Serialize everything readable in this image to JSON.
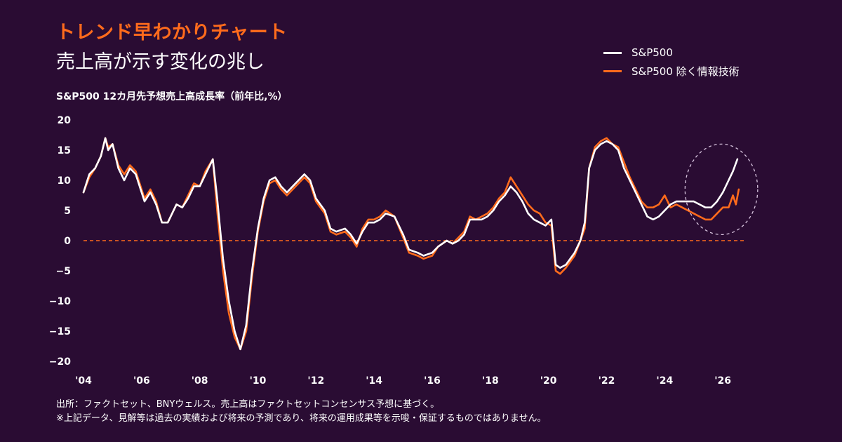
{
  "header": {
    "kicker": "トレンド早わかりチャート",
    "headline": "売上高が示す変化の兆し",
    "axis_caption": "S&P500 12カ月先予想売上高成長率（前年比,%）"
  },
  "legend": [
    {
      "label": "S&P500",
      "color": "#ffffff"
    },
    {
      "label": "S&P500 除く情報技術",
      "color": "#ff6b1c"
    }
  ],
  "footnote": {
    "line1": "出所：ファクトセット、BNYウェルス。売上高はファクトセットコンセンサス予想に基づく。",
    "line2": "※上記データ、見解等は過去の実績および将来の予測であり、将来の運用成果等を示唆・保証するものではありません。"
  },
  "chart_data": {
    "type": "line",
    "x_tick_labels": [
      "'04",
      "'06",
      "'08",
      "'10",
      "'12",
      "'14",
      "'16",
      "'18",
      "'20",
      "'22",
      "'24",
      "'26"
    ],
    "x_tick_years": [
      2004,
      2006,
      2008,
      2010,
      2012,
      2014,
      2016,
      2018,
      2020,
      2022,
      2024,
      2026
    ],
    "y_ticks": [
      20,
      15,
      10,
      5,
      0,
      -5,
      -10,
      -15,
      -20
    ],
    "xlim": [
      2004,
      2026.6
    ],
    "ylim": [
      -20,
      20
    ],
    "zero_line": {
      "value": 0,
      "style": "dashed",
      "color": "#ff6b1c"
    },
    "highlight": {
      "shape": "dashed-ellipse",
      "x_range": [
        2024.7,
        2027.2
      ],
      "y_range": [
        1,
        16
      ]
    },
    "series": [
      {
        "name": "S&P500",
        "color": "#ffffff",
        "points": [
          [
            2004.0,
            8
          ],
          [
            2004.2,
            11
          ],
          [
            2004.4,
            12
          ],
          [
            2004.6,
            14
          ],
          [
            2004.75,
            17
          ],
          [
            2004.85,
            15
          ],
          [
            2005.0,
            16
          ],
          [
            2005.2,
            12
          ],
          [
            2005.4,
            10
          ],
          [
            2005.6,
            12
          ],
          [
            2005.8,
            11
          ],
          [
            2006.0,
            8
          ],
          [
            2006.1,
            6.5
          ],
          [
            2006.3,
            8
          ],
          [
            2006.5,
            6
          ],
          [
            2006.7,
            3
          ],
          [
            2006.9,
            3
          ],
          [
            2007.2,
            6
          ],
          [
            2007.4,
            5.5
          ],
          [
            2007.6,
            7
          ],
          [
            2007.8,
            9
          ],
          [
            2008.0,
            9
          ],
          [
            2008.2,
            11
          ],
          [
            2008.45,
            13.5
          ],
          [
            2008.6,
            7
          ],
          [
            2008.8,
            -3
          ],
          [
            2009.0,
            -10
          ],
          [
            2009.2,
            -15
          ],
          [
            2009.4,
            -18
          ],
          [
            2009.6,
            -14
          ],
          [
            2009.8,
            -5
          ],
          [
            2010.0,
            2
          ],
          [
            2010.2,
            7
          ],
          [
            2010.4,
            10
          ],
          [
            2010.6,
            10.5
          ],
          [
            2010.8,
            9
          ],
          [
            2011.0,
            8
          ],
          [
            2011.3,
            9.5
          ],
          [
            2011.6,
            11
          ],
          [
            2011.8,
            10
          ],
          [
            2012.0,
            7
          ],
          [
            2012.3,
            5
          ],
          [
            2012.5,
            2
          ],
          [
            2012.7,
            1.5
          ],
          [
            2013.0,
            2
          ],
          [
            2013.2,
            1
          ],
          [
            2013.4,
            -0.5
          ],
          [
            2013.6,
            1.5
          ],
          [
            2013.8,
            3
          ],
          [
            2014.0,
            3
          ],
          [
            2014.2,
            3.5
          ],
          [
            2014.4,
            4.5
          ],
          [
            2014.7,
            4
          ],
          [
            2015.0,
            1
          ],
          [
            2015.2,
            -1.5
          ],
          [
            2015.5,
            -2
          ],
          [
            2015.7,
            -2.5
          ],
          [
            2016.0,
            -2
          ],
          [
            2016.2,
            -1
          ],
          [
            2016.5,
            0
          ],
          [
            2016.7,
            -0.5
          ],
          [
            2016.9,
            0
          ],
          [
            2017.1,
            1
          ],
          [
            2017.3,
            3.5
          ],
          [
            2017.5,
            3.5
          ],
          [
            2017.7,
            3.5
          ],
          [
            2017.9,
            4
          ],
          [
            2018.1,
            5
          ],
          [
            2018.3,
            6.5
          ],
          [
            2018.5,
            7.5
          ],
          [
            2018.7,
            9
          ],
          [
            2018.9,
            8
          ],
          [
            2019.1,
            6.5
          ],
          [
            2019.3,
            4.5
          ],
          [
            2019.5,
            3.5
          ],
          [
            2019.7,
            3
          ],
          [
            2019.9,
            2.5
          ],
          [
            2020.1,
            3.5
          ],
          [
            2020.25,
            -4
          ],
          [
            2020.4,
            -4.5
          ],
          [
            2020.6,
            -4
          ],
          [
            2020.9,
            -2
          ],
          [
            2021.1,
            0
          ],
          [
            2021.25,
            3
          ],
          [
            2021.4,
            12
          ],
          [
            2021.6,
            15
          ],
          [
            2021.8,
            16
          ],
          [
            2022.0,
            16.5
          ],
          [
            2022.2,
            16
          ],
          [
            2022.4,
            15
          ],
          [
            2022.6,
            12
          ],
          [
            2022.8,
            10
          ],
          [
            2023.0,
            8
          ],
          [
            2023.2,
            6
          ],
          [
            2023.4,
            4
          ],
          [
            2023.6,
            3.5
          ],
          [
            2023.8,
            4
          ],
          [
            2024.0,
            5
          ],
          [
            2024.2,
            6
          ],
          [
            2024.4,
            6.5
          ],
          [
            2024.6,
            6.5
          ],
          [
            2024.8,
            6.5
          ],
          [
            2025.0,
            6.5
          ],
          [
            2025.2,
            6
          ],
          [
            2025.4,
            5.5
          ],
          [
            2025.6,
            5.5
          ],
          [
            2025.8,
            6.5
          ],
          [
            2026.0,
            8
          ],
          [
            2026.2,
            10
          ],
          [
            2026.35,
            11.5
          ],
          [
            2026.5,
            13.5
          ]
        ]
      },
      {
        "name": "S&P500 除く情報技術",
        "color": "#ff6b1c",
        "points": [
          [
            2004.0,
            8
          ],
          [
            2004.2,
            10.5
          ],
          [
            2004.4,
            12
          ],
          [
            2004.6,
            14
          ],
          [
            2004.75,
            17
          ],
          [
            2004.85,
            15.5
          ],
          [
            2005.0,
            16
          ],
          [
            2005.2,
            12.5
          ],
          [
            2005.4,
            11
          ],
          [
            2005.6,
            12.5
          ],
          [
            2005.8,
            11.5
          ],
          [
            2006.0,
            8.5
          ],
          [
            2006.1,
            7
          ],
          [
            2006.3,
            8.5
          ],
          [
            2006.5,
            6.5
          ],
          [
            2006.7,
            3
          ],
          [
            2006.9,
            3
          ],
          [
            2007.2,
            6
          ],
          [
            2007.4,
            5.5
          ],
          [
            2007.6,
            7.5
          ],
          [
            2007.8,
            9.5
          ],
          [
            2008.0,
            9
          ],
          [
            2008.2,
            11.5
          ],
          [
            2008.45,
            13.5
          ],
          [
            2008.6,
            5
          ],
          [
            2008.8,
            -5
          ],
          [
            2009.0,
            -12
          ],
          [
            2009.2,
            -16
          ],
          [
            2009.4,
            -18
          ],
          [
            2009.6,
            -15
          ],
          [
            2009.8,
            -6
          ],
          [
            2010.0,
            1.5
          ],
          [
            2010.2,
            6.5
          ],
          [
            2010.4,
            9.5
          ],
          [
            2010.6,
            10
          ],
          [
            2010.8,
            8.5
          ],
          [
            2011.0,
            7.5
          ],
          [
            2011.3,
            9
          ],
          [
            2011.6,
            10.5
          ],
          [
            2011.8,
            9.5
          ],
          [
            2012.0,
            6.5
          ],
          [
            2012.3,
            4.5
          ],
          [
            2012.5,
            1.5
          ],
          [
            2012.7,
            1
          ],
          [
            2013.0,
            1.5
          ],
          [
            2013.2,
            0.5
          ],
          [
            2013.4,
            -1
          ],
          [
            2013.6,
            2
          ],
          [
            2013.8,
            3.5
          ],
          [
            2014.0,
            3.5
          ],
          [
            2014.2,
            4
          ],
          [
            2014.4,
            5
          ],
          [
            2014.7,
            4
          ],
          [
            2015.0,
            0.5
          ],
          [
            2015.2,
            -2
          ],
          [
            2015.5,
            -2.5
          ],
          [
            2015.7,
            -3
          ],
          [
            2016.0,
            -2.5
          ],
          [
            2016.2,
            -1
          ],
          [
            2016.5,
            0
          ],
          [
            2016.7,
            -0.5
          ],
          [
            2016.9,
            0.5
          ],
          [
            2017.1,
            1.5
          ],
          [
            2017.3,
            4
          ],
          [
            2017.5,
            3.5
          ],
          [
            2017.7,
            4
          ],
          [
            2017.9,
            4.5
          ],
          [
            2018.1,
            5.5
          ],
          [
            2018.3,
            7
          ],
          [
            2018.5,
            8
          ],
          [
            2018.7,
            10.5
          ],
          [
            2018.9,
            9
          ],
          [
            2019.1,
            7.5
          ],
          [
            2019.3,
            6
          ],
          [
            2019.5,
            5
          ],
          [
            2019.7,
            4.5
          ],
          [
            2019.9,
            3
          ],
          [
            2020.1,
            2.5
          ],
          [
            2020.25,
            -5
          ],
          [
            2020.4,
            -5.5
          ],
          [
            2020.6,
            -4.5
          ],
          [
            2020.9,
            -2.5
          ],
          [
            2021.1,
            0
          ],
          [
            2021.25,
            2
          ],
          [
            2021.4,
            12
          ],
          [
            2021.6,
            15.5
          ],
          [
            2021.8,
            16.5
          ],
          [
            2022.0,
            17
          ],
          [
            2022.2,
            16
          ],
          [
            2022.4,
            15.5
          ],
          [
            2022.6,
            13
          ],
          [
            2022.8,
            10.5
          ],
          [
            2023.0,
            8.5
          ],
          [
            2023.2,
            6.5
          ],
          [
            2023.4,
            5.5
          ],
          [
            2023.6,
            5.5
          ],
          [
            2023.8,
            6
          ],
          [
            2024.0,
            7.5
          ],
          [
            2024.2,
            5.5
          ],
          [
            2024.4,
            6
          ],
          [
            2024.6,
            5.5
          ],
          [
            2024.8,
            5
          ],
          [
            2025.0,
            4.5
          ],
          [
            2025.2,
            4
          ],
          [
            2025.4,
            3.5
          ],
          [
            2025.6,
            3.5
          ],
          [
            2025.8,
            4.5
          ],
          [
            2026.0,
            5.5
          ],
          [
            2026.2,
            5.5
          ],
          [
            2026.35,
            7.5
          ],
          [
            2026.45,
            6
          ],
          [
            2026.55,
            8.5
          ]
        ]
      }
    ]
  }
}
